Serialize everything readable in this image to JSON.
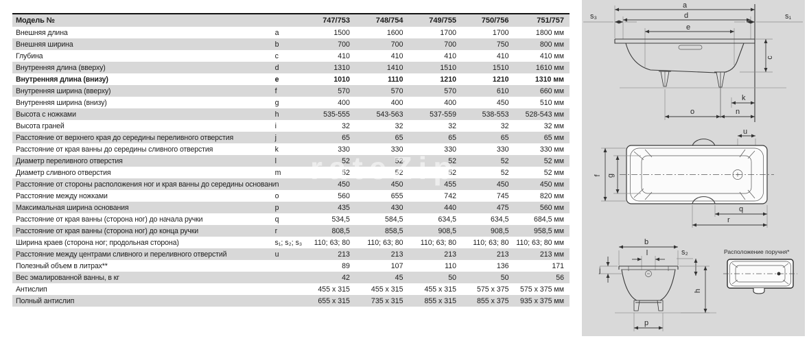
{
  "watermark": "rateZip",
  "table": {
    "header": {
      "model_label": "Модель №",
      "models": [
        "747/753",
        "748/754",
        "749/755",
        "750/756",
        "751/757"
      ]
    },
    "rows": [
      {
        "label": "Внешняя длина",
        "letter": "a",
        "values": [
          "1500",
          "1600",
          "1700",
          "1700",
          "1800 мм"
        ],
        "bold": false
      },
      {
        "label": "Внешняя ширина",
        "letter": "b",
        "values": [
          "700",
          "700",
          "700",
          "750",
          "800 мм"
        ],
        "bold": false
      },
      {
        "label": "Глубина",
        "letter": "c",
        "values": [
          "410",
          "410",
          "410",
          "410",
          "410 мм"
        ],
        "bold": false
      },
      {
        "label": "Внутренняя длина (вверху)",
        "letter": "d",
        "values": [
          "1310",
          "1410",
          "1510",
          "1510",
          "1610 мм"
        ],
        "bold": false
      },
      {
        "label": "Внутренняя длина (внизу)",
        "letter": "e",
        "values": [
          "1010",
          "1110",
          "1210",
          "1210",
          "1310 мм"
        ],
        "bold": true
      },
      {
        "label": "Внутренняя ширина (вверху)",
        "letter": "f",
        "values": [
          "570",
          "570",
          "570",
          "610",
          "660 мм"
        ],
        "bold": false
      },
      {
        "label": "Внутренняя ширина (внизу)",
        "letter": "g",
        "values": [
          "400",
          "400",
          "400",
          "450",
          "510 мм"
        ],
        "bold": false
      },
      {
        "label": "Высота с ножками",
        "letter": "h",
        "values": [
          "535-555",
          "543-563",
          "537-559",
          "538-553",
          "528-543 мм"
        ],
        "bold": false
      },
      {
        "label": "Высота граней",
        "letter": "i",
        "values": [
          "32",
          "32",
          "32",
          "32",
          "32 мм"
        ],
        "bold": false
      },
      {
        "label": "Расстояние от верхнего края до середины переливного отверстия",
        "letter": "j",
        "values": [
          "65",
          "65",
          "65",
          "65",
          "65 мм"
        ],
        "bold": false
      },
      {
        "label": "Расстояние от края ванны до середины сливного отверстия",
        "letter": "k",
        "values": [
          "330",
          "330",
          "330",
          "330",
          "330 мм"
        ],
        "bold": false
      },
      {
        "label": "Диаметр переливного отверстия",
        "letter": "l",
        "values": [
          "52",
          "52",
          "52",
          "52",
          "52 мм"
        ],
        "bold": false
      },
      {
        "label": "Диаметр сливного отверстия",
        "letter": "m",
        "values": [
          "52",
          "52",
          "52",
          "52",
          "52 мм"
        ],
        "bold": false
      },
      {
        "label": "Расстояние от стороны расположения ног и края ванны до середины основания",
        "letter": "n",
        "values": [
          "450",
          "450",
          "455",
          "450",
          "450 мм"
        ],
        "bold": false
      },
      {
        "label": "Расстояние между ножками",
        "letter": "o",
        "values": [
          "560",
          "655",
          "742",
          "745",
          "820 мм"
        ],
        "bold": false
      },
      {
        "label": "Максимальная ширина основания",
        "letter": "p",
        "values": [
          "435",
          "430",
          "440",
          "475",
          "560 мм"
        ],
        "bold": false
      },
      {
        "label": "Расстояние от края ванны (сторона ног) до начала ручки",
        "letter": "q",
        "values": [
          "534,5",
          "584,5",
          "634,5",
          "634,5",
          "684,5 мм"
        ],
        "bold": false
      },
      {
        "label": "Расстояние от края ванны (сторона ног) до конца ручки",
        "letter": "r",
        "values": [
          "808,5",
          "858,5",
          "908,5",
          "908,5",
          "958,5 мм"
        ],
        "bold": false
      },
      {
        "label": "Ширина краев (сторона ног; продольная сторона)",
        "letter": "s₁; s₂; s₃",
        "values": [
          "110; 63; 80",
          "110; 63; 80",
          "110; 63; 80",
          "110; 63; 80",
          "110; 63; 80 мм"
        ],
        "bold": false
      },
      {
        "label": "Расстояние между центрами сливного и переливного отверстий",
        "letter": "u",
        "values": [
          "213",
          "213",
          "213",
          "213",
          "213 мм"
        ],
        "bold": false
      },
      {
        "label": "Полезный объем в литрах**",
        "letter": "",
        "values": [
          "89",
          "107",
          "110",
          "136",
          "171"
        ],
        "bold": false
      },
      {
        "label": "Вес эмалированной ванны, в кг",
        "letter": "",
        "values": [
          "42",
          "45",
          "50",
          "50",
          "56"
        ],
        "bold": false
      },
      {
        "label": "Антислип",
        "letter": "",
        "values": [
          "455 x 315",
          "455 x 315",
          "455 x 315",
          "575 x 375",
          "575 x 375 мм"
        ],
        "bold": false
      },
      {
        "label": "Полный антислип",
        "letter": "",
        "values": [
          "655 x 315",
          "735 x 315",
          "855 x 315",
          "855 x 375",
          "935 x 375 мм"
        ],
        "bold": false
      }
    ]
  },
  "diagrams": {
    "side_view": {
      "labels": {
        "a": "a",
        "d": "d",
        "e": "e",
        "s3": "s₃",
        "s1": "s₁",
        "c": "c",
        "k": "k",
        "o": "o",
        "n": "n"
      }
    },
    "top_view": {
      "labels": {
        "u": "u",
        "f": "f",
        "g": "g",
        "q": "q",
        "r": "r"
      }
    },
    "cross_section": {
      "labels": {
        "b": "b",
        "l": "l",
        "s2": "s₂",
        "j": "j",
        "h": "h",
        "p": "p"
      }
    },
    "handle_location": {
      "caption": "Расположение поручня*"
    }
  },
  "colors": {
    "row_gray": "#d8d8d8",
    "panel_gray": "#d9d9d9",
    "line": "#3a3a3a"
  }
}
